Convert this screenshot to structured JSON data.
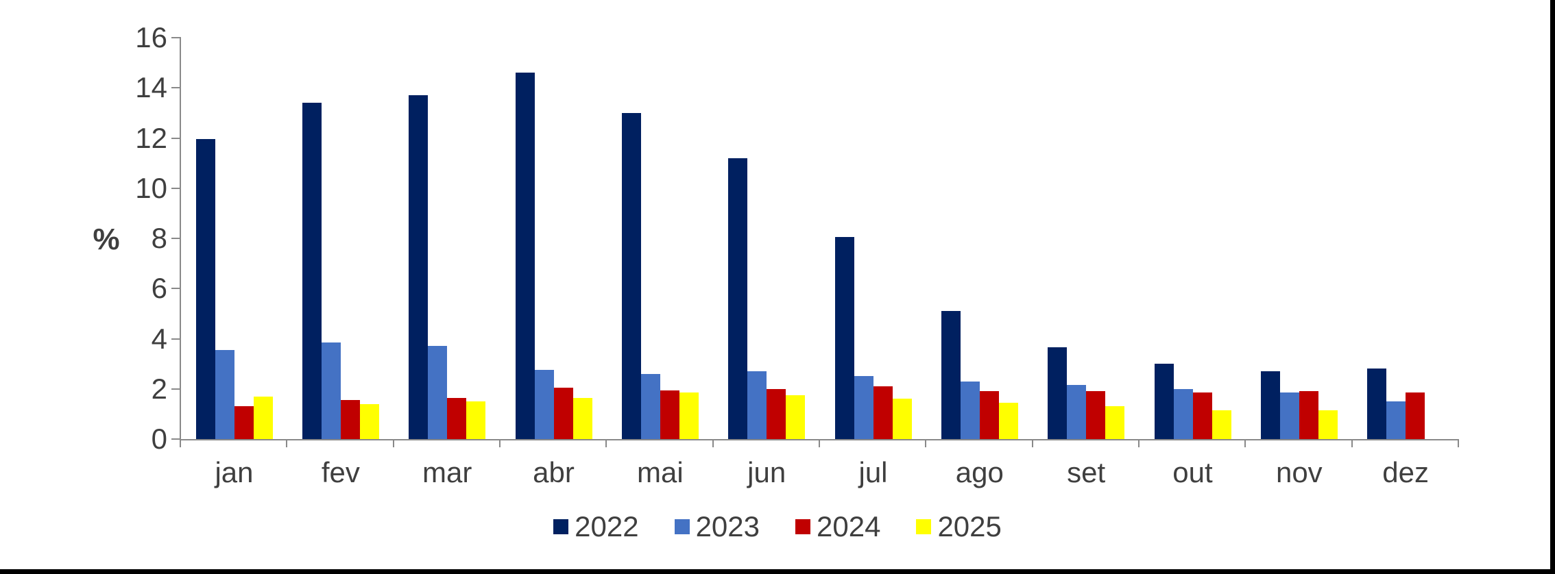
{
  "chart_data": {
    "type": "bar",
    "title": "",
    "xlabel": "",
    "ylabel": "%",
    "categories": [
      "jan",
      "fev",
      "mar",
      "abr",
      "mai",
      "jun",
      "jul",
      "ago",
      "set",
      "out",
      "nov",
      "dez"
    ],
    "series": [
      {
        "name": "2022",
        "color": "#002060",
        "values": [
          11.95,
          13.4,
          13.7,
          14.6,
          13.0,
          11.2,
          8.05,
          5.1,
          3.65,
          3.0,
          2.7,
          2.8
        ]
      },
      {
        "name": "2023",
        "color": "#4472C4",
        "values": [
          3.55,
          3.85,
          3.7,
          2.75,
          2.6,
          2.7,
          2.5,
          2.3,
          2.15,
          2.0,
          1.85,
          1.5
        ]
      },
      {
        "name": "2024",
        "color": "#C00000",
        "values": [
          1.3,
          1.55,
          1.65,
          2.05,
          1.95,
          2.0,
          2.1,
          1.9,
          1.9,
          1.85,
          1.9,
          1.85
        ]
      },
      {
        "name": "2025",
        "color": "#FFFF00",
        "values": [
          1.7,
          1.4,
          1.5,
          1.65,
          1.85,
          1.75,
          1.6,
          1.45,
          1.3,
          1.15,
          1.15,
          null
        ]
      }
    ],
    "ylim": [
      0,
      16
    ],
    "y_ticks": [
      0,
      2,
      4,
      6,
      8,
      10,
      12,
      14,
      16
    ],
    "grid": false,
    "legend_position": "bottom",
    "legend_labels": [
      "2022",
      "2023",
      "2024",
      "2025"
    ]
  },
  "colors": {
    "axis": "#898989",
    "text": "#3F3F3F",
    "background": "#FFFFFF",
    "screen_border": "#000000"
  }
}
